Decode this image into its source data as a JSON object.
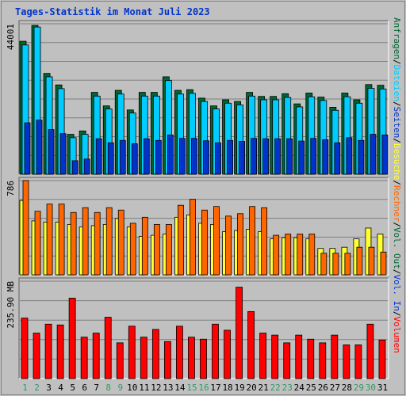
{
  "title": "Tages-Statistik im Monat Juli 2023",
  "colors": {
    "background": "#c0c0c0",
    "title": "#0033cc",
    "anfragen": "#006633",
    "dateien": "#00ccff",
    "seiten": "#0033cc",
    "besuche": "#ffff33",
    "rechner": "#ff6600",
    "volume": "#ff0000",
    "volume_in": "#0033cc",
    "volume_out": "#006633",
    "weekend_label": "#339966",
    "weekday_label": "#000000"
  },
  "chart_data": [
    {
      "type": "bar",
      "panel": "hits",
      "ymax_label": "44001",
      "ylim": [
        0,
        44001
      ],
      "categories": [
        "1",
        "2",
        "3",
        "4",
        "5",
        "6",
        "7",
        "8",
        "9",
        "10",
        "11",
        "12",
        "13",
        "14",
        "15",
        "16",
        "17",
        "18",
        "19",
        "20",
        "21",
        "22",
        "23",
        "24",
        "25",
        "26",
        "27",
        "28",
        "29",
        "30",
        "31"
      ],
      "weekend_days": [
        "1",
        "2",
        "8",
        "9",
        "15",
        "16",
        "22",
        "23",
        "29",
        "30"
      ],
      "series": [
        {
          "name": "Anfragen",
          "values": [
            39300,
            44001,
            29800,
            26400,
            11800,
            12800,
            24200,
            20200,
            24800,
            19000,
            24200,
            24200,
            28800,
            24800,
            25000,
            22500,
            20200,
            22000,
            21500,
            24200,
            23000,
            23000,
            23800,
            20800,
            24000,
            22800,
            19800,
            24000,
            22000,
            26500,
            26300
          ]
        },
        {
          "name": "Dateien",
          "values": [
            38200,
            43500,
            28800,
            25300,
            10800,
            11800,
            23100,
            19300,
            23700,
            18100,
            23100,
            23100,
            27700,
            23700,
            23900,
            21500,
            19300,
            21000,
            20500,
            23100,
            22000,
            22000,
            22700,
            19900,
            22900,
            21800,
            18900,
            22900,
            21000,
            25400,
            25200
          ]
        },
        {
          "name": "Seiten",
          "values": [
            15200,
            16000,
            13200,
            12000,
            4000,
            4500,
            10500,
            9300,
            10000,
            9000,
            10500,
            10000,
            11600,
            10600,
            10600,
            9900,
            9300,
            10000,
            9700,
            10600,
            10500,
            10500,
            10500,
            9800,
            10600,
            10200,
            9300,
            10800,
            10000,
            11800,
            11600
          ]
        }
      ]
    },
    {
      "type": "bar",
      "panel": "visits",
      "ymax_label": "786",
      "ylim": [
        0,
        786
      ],
      "categories": [
        "1",
        "2",
        "3",
        "4",
        "5",
        "6",
        "7",
        "8",
        "9",
        "10",
        "11",
        "12",
        "13",
        "14",
        "15",
        "16",
        "17",
        "18",
        "19",
        "20",
        "21",
        "22",
        "23",
        "24",
        "25",
        "26",
        "27",
        "28",
        "29",
        "30",
        "31"
      ],
      "series": [
        {
          "name": "Besuche",
          "values": [
            620,
            450,
            440,
            440,
            420,
            400,
            410,
            420,
            470,
            400,
            320,
            330,
            340,
            480,
            500,
            430,
            420,
            360,
            370,
            380,
            360,
            300,
            310,
            310,
            300,
            220,
            220,
            230,
            300,
            390,
            340
          ]
        },
        {
          "name": "Rechner",
          "values": [
            786,
            530,
            590,
            590,
            520,
            560,
            520,
            560,
            540,
            430,
            480,
            420,
            420,
            580,
            630,
            540,
            570,
            490,
            510,
            570,
            560,
            330,
            340,
            340,
            340,
            180,
            180,
            180,
            230,
            230,
            190
          ]
        }
      ]
    },
    {
      "type": "bar",
      "panel": "volume",
      "ymax_label": "235.90 MB",
      "ylim": [
        0,
        235.9
      ],
      "categories": [
        "1",
        "2",
        "3",
        "4",
        "5",
        "6",
        "7",
        "8",
        "9",
        "10",
        "11",
        "12",
        "13",
        "14",
        "15",
        "16",
        "17",
        "18",
        "19",
        "20",
        "21",
        "22",
        "23",
        "24",
        "25",
        "26",
        "27",
        "28",
        "29",
        "30",
        "31"
      ],
      "series": [
        {
          "name": "Volumen",
          "values": [
            149,
            112,
            134,
            132,
            198,
            102,
            112,
            151,
            88,
            129,
            102,
            121,
            91,
            129,
            102,
            97,
            134,
            119,
            225,
            165,
            112,
            107,
            88,
            107,
            97,
            88,
            107,
            83,
            83,
            134,
            95
          ]
        }
      ]
    }
  ],
  "legend_right": [
    {
      "text": "Anfragen",
      "color": "#006633"
    },
    {
      "text": "/",
      "color": "#000000"
    },
    {
      "text": "Dateien",
      "color": "#00ccff"
    },
    {
      "text": "/",
      "color": "#000000"
    },
    {
      "text": "Seiten",
      "color": "#0033cc"
    },
    {
      "text": "/",
      "color": "#000000"
    },
    {
      "text": "Besuche",
      "color": "#ffff33"
    },
    {
      "text": "/",
      "color": "#000000"
    },
    {
      "text": "Rechner",
      "color": "#ff6600"
    },
    {
      "text": "/",
      "color": "#000000"
    },
    {
      "text": "Vol. Out",
      "color": "#006633"
    },
    {
      "text": "/",
      "color": "#000000"
    },
    {
      "text": "Vol. In",
      "color": "#0033cc"
    },
    {
      "text": "/",
      "color": "#000000"
    },
    {
      "text": "Volumen",
      "color": "#ff0000"
    }
  ]
}
